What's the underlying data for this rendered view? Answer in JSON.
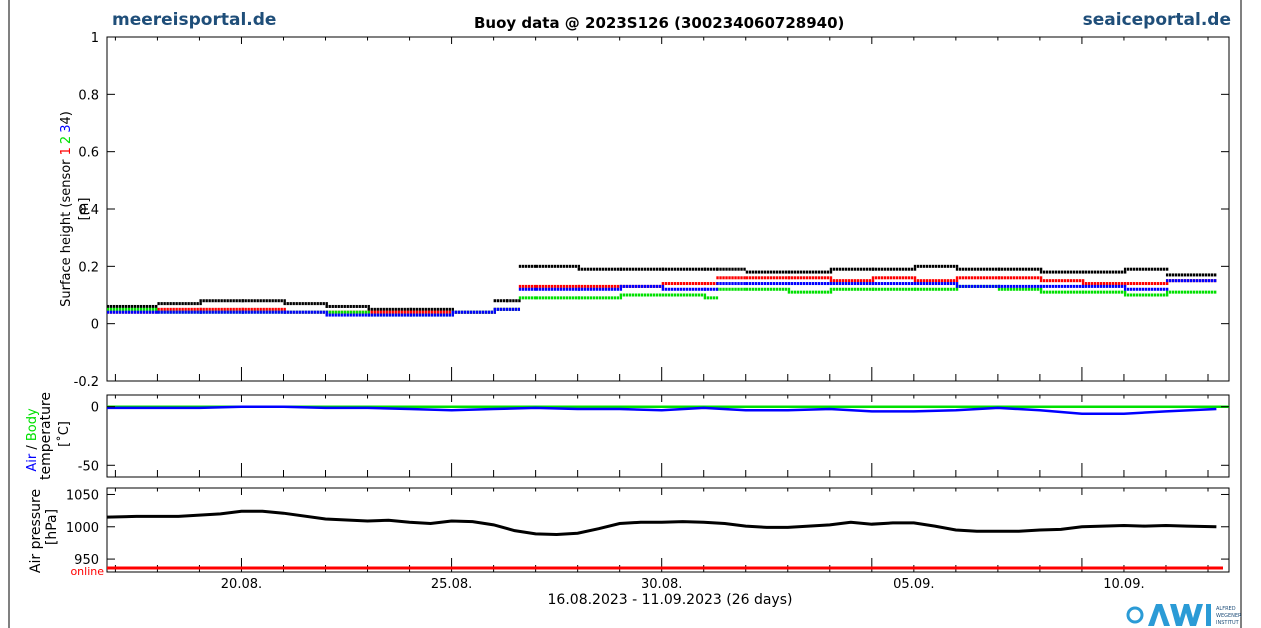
{
  "header": {
    "site_left": "meereisportal.de",
    "chart_title": "Buoy data @ 2023S126   (300234060728940)",
    "site_right": "seaiceportal.de"
  },
  "footer": {
    "period": "16.08.2023 - 11.09.2023 (26 days)",
    "logo_text": [
      "ALFRED",
      "WEGENER",
      "INSTITUT"
    ]
  },
  "colors": {
    "black": "#000000",
    "red": "#ff0000",
    "green": "#00e000",
    "blue": "#0000ff",
    "brand": "#1f4e79"
  },
  "chart_data": [
    {
      "type": "scatter",
      "panel": "surface-height",
      "ylabel_line1": "Surface height (sensor ",
      "ylabel_sensors": [
        "1",
        "2",
        "3",
        "4"
      ],
      "ylabel_sensors_colors": [
        "red",
        "green",
        "blue",
        "black"
      ],
      "ylabel_close": ")",
      "ylabel_line2": "[m]",
      "ylim": [
        -0.2,
        1.0
      ],
      "yticks": [
        -0.2,
        0,
        0.2,
        0.4,
        0.6,
        0.8,
        1
      ],
      "ytick_labels": [
        "-0.2",
        "0",
        "0.2",
        "0.4",
        "0.6",
        "0.8",
        "1"
      ],
      "xlim_days": [
        16.8,
        43.5
      ],
      "series": [
        {
          "color": "black",
          "x": [
            16.8,
            18,
            19,
            20,
            21,
            22,
            23,
            24,
            25,
            26,
            26.3,
            26.6,
            27,
            28,
            29,
            30,
            31,
            31.3,
            32,
            33,
            34,
            35,
            36,
            37,
            38,
            39,
            40,
            41,
            42,
            43.2
          ],
          "y": [
            0.06,
            0.07,
            0.08,
            0.08,
            0.07,
            0.06,
            0.05,
            0.05,
            0.04,
            0.08,
            0.08,
            0.2,
            0.2,
            0.19,
            0.19,
            0.19,
            0.19,
            0.19,
            0.18,
            0.18,
            0.19,
            0.19,
            0.2,
            0.19,
            0.19,
            0.18,
            0.18,
            0.19,
            0.17,
            0.18
          ]
        },
        {
          "color": "red",
          "x": [
            16.8,
            18,
            19,
            20,
            21,
            22,
            23,
            24,
            25,
            26,
            26.6,
            27,
            28,
            29,
            30,
            31,
            31.3,
            32,
            33,
            34,
            35,
            36,
            37,
            38,
            39,
            40,
            41,
            42,
            43.2
          ],
          "y": [
            0.04,
            0.05,
            0.05,
            0.05,
            0.04,
            0.04,
            0.04,
            0.04,
            0.04,
            0.05,
            0.13,
            0.13,
            0.13,
            0.13,
            0.14,
            0.14,
            0.16,
            0.16,
            0.16,
            0.15,
            0.16,
            0.15,
            0.16,
            0.16,
            0.15,
            0.14,
            0.14,
            0.15,
            0.14
          ]
        },
        {
          "color": "green",
          "x": [
            16.8,
            18,
            19,
            20,
            21,
            22,
            23,
            24,
            25,
            26,
            26.6,
            27,
            28,
            29,
            30,
            31,
            31.3,
            32,
            33,
            34,
            35,
            36,
            37,
            38,
            39,
            40,
            41,
            42,
            43.2
          ],
          "y": [
            0.05,
            0.04,
            0.04,
            0.04,
            0.04,
            0.04,
            0.03,
            0.03,
            0.04,
            0.05,
            0.09,
            0.09,
            0.09,
            0.1,
            0.1,
            0.09,
            0.12,
            0.12,
            0.11,
            0.12,
            0.12,
            0.12,
            0.13,
            0.12,
            0.11,
            0.11,
            0.1,
            0.11,
            0.12
          ]
        },
        {
          "color": "blue",
          "x": [
            16.8,
            18,
            19,
            20,
            21,
            22,
            23,
            24,
            25,
            26,
            26.6,
            27,
            28,
            29,
            30,
            31,
            31.3,
            32,
            33,
            34,
            35,
            36,
            37,
            38,
            39,
            40,
            41,
            42,
            43.2
          ],
          "y": [
            0.04,
            0.04,
            0.04,
            0.04,
            0.04,
            0.03,
            0.03,
            0.03,
            0.04,
            0.05,
            0.12,
            0.12,
            0.12,
            0.13,
            0.12,
            0.12,
            0.14,
            0.14,
            0.14,
            0.14,
            0.14,
            0.14,
            0.13,
            0.13,
            0.13,
            0.13,
            0.12,
            0.15,
            0.16
          ]
        }
      ]
    },
    {
      "type": "line",
      "panel": "temperature",
      "ylabel_line1_parts": [
        "Air",
        " / ",
        "Body"
      ],
      "ylabel_line1_colors": [
        "blue",
        "black",
        "green"
      ],
      "ylabel_line2": "temperature",
      "ylabel_line3": "[˚C]",
      "ylim": [
        -60,
        10
      ],
      "yticks": [
        0,
        -50
      ],
      "ytick_labels": [
        "0",
        "-50"
      ],
      "series": [
        {
          "name": "Body",
          "color": "green",
          "x": [
            16.8,
            43.5
          ],
          "y": [
            0,
            0
          ]
        },
        {
          "name": "Air",
          "color": "blue",
          "x": [
            16.8,
            18,
            19,
            20,
            21,
            22,
            23,
            24,
            25,
            26,
            27,
            28,
            29,
            30,
            31,
            32,
            33,
            34,
            35,
            36,
            37,
            38,
            39,
            40,
            41,
            42,
            43.2
          ],
          "y": [
            -1,
            -1,
            -1,
            0,
            0,
            -1,
            -1,
            -2,
            -3,
            -2,
            -1,
            -2,
            -2,
            -3,
            -1,
            -3,
            -3,
            -2,
            -4,
            -4,
            -3,
            -1,
            -3,
            -6,
            -6,
            -4,
            -2
          ]
        }
      ]
    },
    {
      "type": "line",
      "panel": "air-pressure",
      "ylabel_line1": "Air pressure",
      "ylabel_line2": "[hPa]",
      "online_label": "online",
      "ylim": [
        930,
        1060
      ],
      "yticks": [
        950,
        1000,
        1050
      ],
      "ytick_labels": [
        "950",
        "1000",
        "1050"
      ],
      "series": [
        {
          "color": "black",
          "x": [
            16.8,
            17.5,
            18.5,
            19.5,
            20,
            20.5,
            21,
            22,
            23,
            23.5,
            24,
            24.5,
            25,
            25.5,
            26,
            26.5,
            27,
            27.5,
            28,
            28.5,
            29,
            29.5,
            30,
            30.5,
            31,
            31.5,
            32,
            32.5,
            33,
            33.5,
            34,
            34.5,
            35,
            35.5,
            36,
            36.5,
            37,
            37.5,
            38,
            38.5,
            39,
            39.5,
            40,
            40.5,
            41,
            41.5,
            42,
            42.5,
            43.2
          ],
          "y": [
            1015,
            1016,
            1016,
            1020,
            1024,
            1024,
            1021,
            1012,
            1009,
            1010,
            1007,
            1005,
            1009,
            1008,
            1003,
            994,
            989,
            988,
            990,
            997,
            1005,
            1007,
            1007,
            1008,
            1007,
            1005,
            1001,
            999,
            999,
            1001,
            1003,
            1007,
            1004,
            1006,
            1006,
            1001,
            995,
            993,
            993,
            993,
            995,
            996,
            1000,
            1001,
            1002,
            1001,
            1002,
            1001,
            1000
          ]
        }
      ]
    }
  ],
  "xaxis": {
    "tick_labels": [
      "20.08.",
      "25.08.",
      "30.08.",
      "05.09.",
      "10.09."
    ],
    "tick_days": [
      20,
      25,
      30,
      36,
      41
    ]
  }
}
